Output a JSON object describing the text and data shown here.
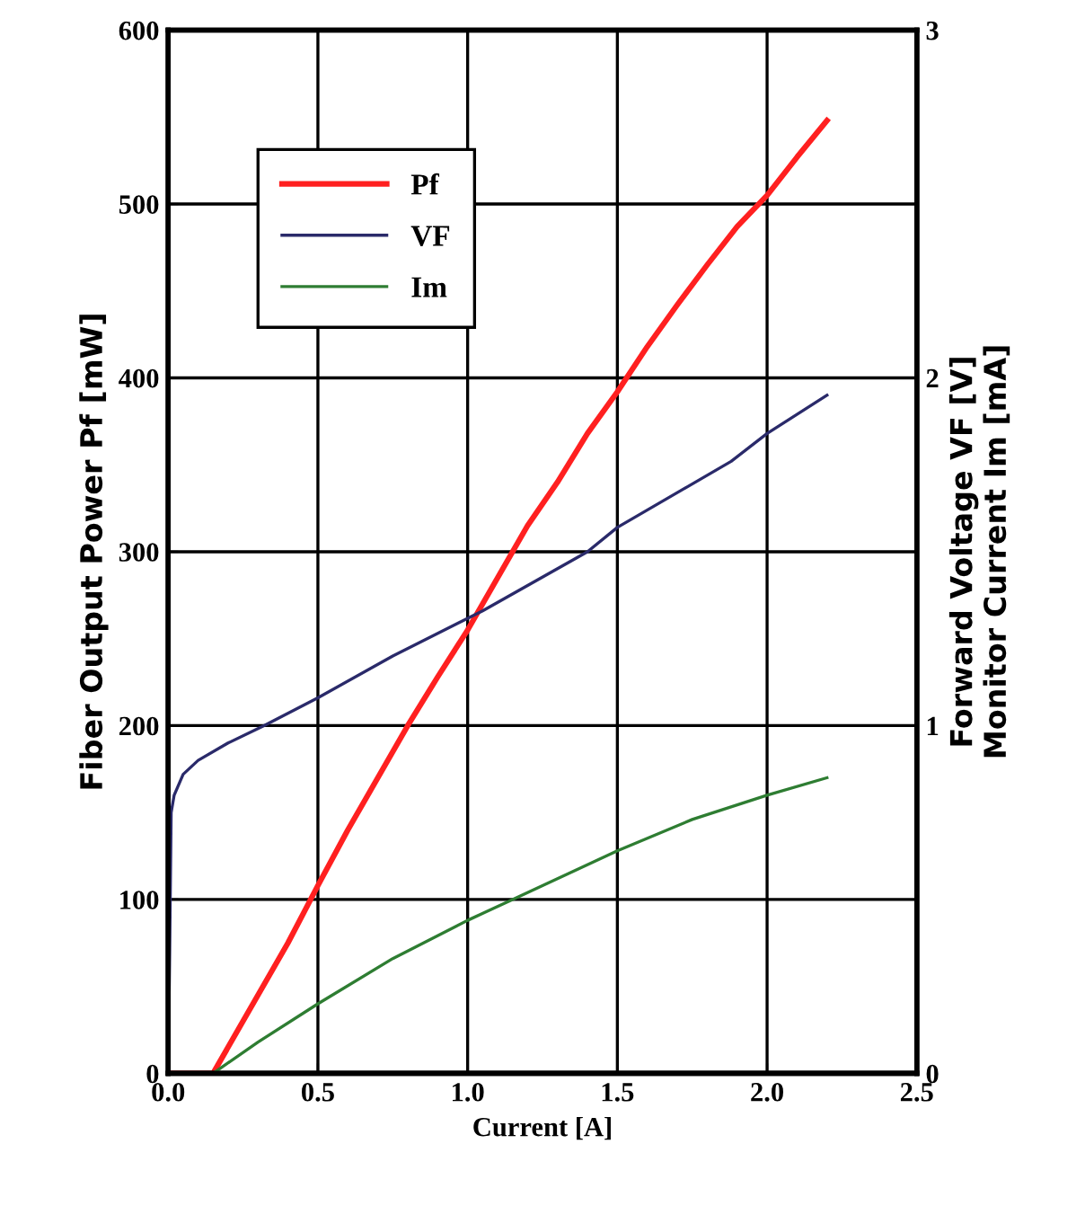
{
  "chart_data": {
    "type": "line",
    "xlabel": "Current [A]",
    "ylabel": "Fiber Output Power Pf [mW]",
    "y2label": "Forward Voltage VF [V]\nMonitor Current Im [mA]",
    "xlim": [
      0,
      2.5
    ],
    "xticks": [
      {
        "value": 0,
        "label": "0.0"
      },
      {
        "value": 0.5,
        "label": "0.5"
      },
      {
        "value": 1,
        "label": "1.0"
      },
      {
        "value": 1.5,
        "label": "1.5"
      },
      {
        "value": 2,
        "label": "2.0"
      },
      {
        "value": 2.5,
        "label": "2.5"
      }
    ],
    "ylim": [
      0,
      600
    ],
    "yticks": [
      0,
      100,
      200,
      300,
      400,
      500,
      600
    ],
    "y2lim": [
      0,
      3
    ],
    "y2ticks": [
      0,
      1,
      2,
      3
    ],
    "grid": true,
    "legend": "top left",
    "series": [
      {
        "name": "Pf",
        "color": "#ff2020",
        "x": [
          0,
          0.15,
          0.3,
          0.4,
          0.5,
          0.6,
          0.7,
          0.8,
          0.9,
          1.0,
          1.1,
          1.2,
          1.3,
          1.4,
          1.5,
          1.6,
          1.7,
          1.8,
          1.9,
          2.0,
          2.1,
          2.2
        ],
        "values": [
          0,
          0,
          45,
          75,
          108,
          140,
          170,
          200,
          228,
          255,
          285,
          315,
          340,
          368,
          392,
          418,
          442,
          465,
          487,
          505,
          527,
          548
        ]
      },
      {
        "name": "VF",
        "color": "#2a2a6a",
        "axis": "y2",
        "x": [
          0,
          0.005,
          0.01,
          0.02,
          0.05,
          0.1,
          0.2,
          0.32,
          0.5,
          0.75,
          1.05,
          1.4,
          1.5,
          1.88,
          2.0,
          2.2
        ],
        "values": [
          0,
          0.35,
          0.75,
          0.8,
          0.86,
          0.9,
          0.95,
          1.0,
          1.08,
          1.2,
          1.33,
          1.5,
          1.57,
          1.76,
          1.84,
          1.95
        ]
      },
      {
        "name": "Im",
        "color": "#2e7d32",
        "axis": "y2",
        "x": [
          0.15,
          0.3,
          0.5,
          0.75,
          1.0,
          1.15,
          1.5,
          1.75,
          2.0,
          2.2
        ],
        "values": [
          0,
          0.09,
          0.2,
          0.33,
          0.44,
          0.5,
          0.64,
          0.73,
          0.8,
          0.85
        ]
      }
    ]
  }
}
